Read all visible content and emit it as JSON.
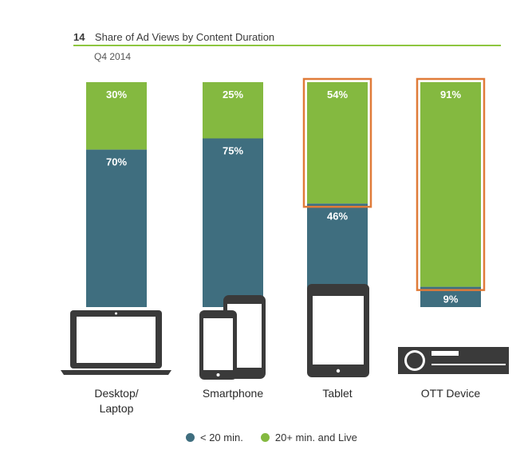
{
  "figure": {
    "number": "14",
    "title": "Share of Ad Views by Content Duration",
    "subtitle": "Q4 2014"
  },
  "colors": {
    "short": "#3f6e7f",
    "long": "#84b940",
    "highlight": "#e07b39",
    "text_on_bar": "#ffffff",
    "device": "#3a3a3a",
    "rule": "#8dc63f"
  },
  "chart_data": {
    "type": "bar",
    "stacked": true,
    "categories": [
      "Desktop/\nLaptop",
      "Smartphone",
      "Tablet",
      "OTT Device"
    ],
    "series": [
      {
        "name": "< 20 min.",
        "values": [
          70,
          75,
          46,
          9
        ],
        "labels": [
          "70%",
          "75%",
          "46%",
          "9%"
        ]
      },
      {
        "name": "20+ min. and Live",
        "values": [
          30,
          25,
          54,
          91
        ],
        "labels": [
          "30%",
          "25%",
          "54%",
          "91%"
        ]
      }
    ],
    "highlighted_segments": [
      {
        "category": "Tablet",
        "series": "20+ min. and Live"
      },
      {
        "category": "OTT Device",
        "series": "20+ min. and Live"
      }
    ],
    "device_icons": [
      "laptop-icon",
      "smartphone-icon",
      "tablet-icon",
      "ott-box-icon"
    ],
    "legend_position": "bottom-center",
    "ylim": [
      0,
      100
    ],
    "grid": false
  },
  "legend": {
    "short_label": "< 20 min.",
    "long_label": "20+ min. and Live"
  }
}
